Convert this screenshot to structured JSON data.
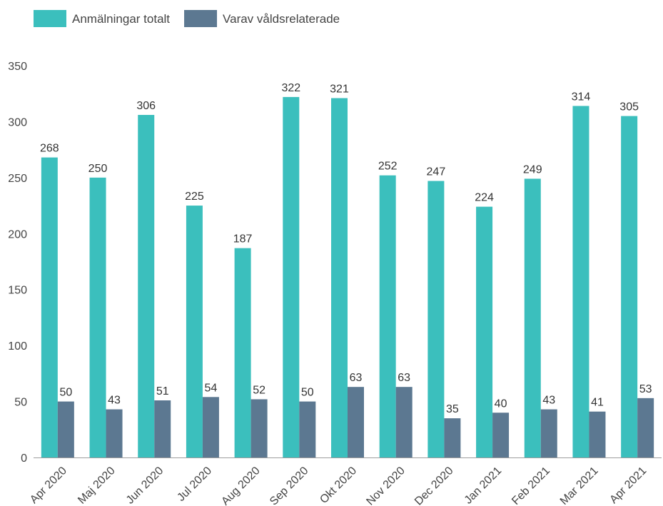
{
  "chart_data": {
    "type": "bar",
    "categories": [
      "Apr 2020",
      "Maj 2020",
      "Jun 2020",
      "Jul 2020",
      "Aug 2020",
      "Sep 2020",
      "Okt 2020",
      "Nov 2020",
      "Dec 2020",
      "Jan 2021",
      "Feb 2021",
      "Mar 2021",
      "Apr 2021"
    ],
    "series": [
      {
        "name": "Anmälningar totalt",
        "color": "#3bbfbd",
        "values": [
          268,
          250,
          306,
          225,
          187,
          322,
          321,
          252,
          247,
          224,
          249,
          314,
          305
        ]
      },
      {
        "name": "Varav våldsrelaterade",
        "color": "#5c7891",
        "values": [
          50,
          43,
          51,
          54,
          52,
          50,
          63,
          63,
          35,
          40,
          43,
          41,
          53
        ]
      }
    ],
    "yticks": [
      0,
      50,
      100,
      150,
      200,
      250,
      300,
      350
    ],
    "ylim": [
      0,
      350
    ],
    "grid": false,
    "legend_position": "top-left",
    "data_labels": true
  }
}
